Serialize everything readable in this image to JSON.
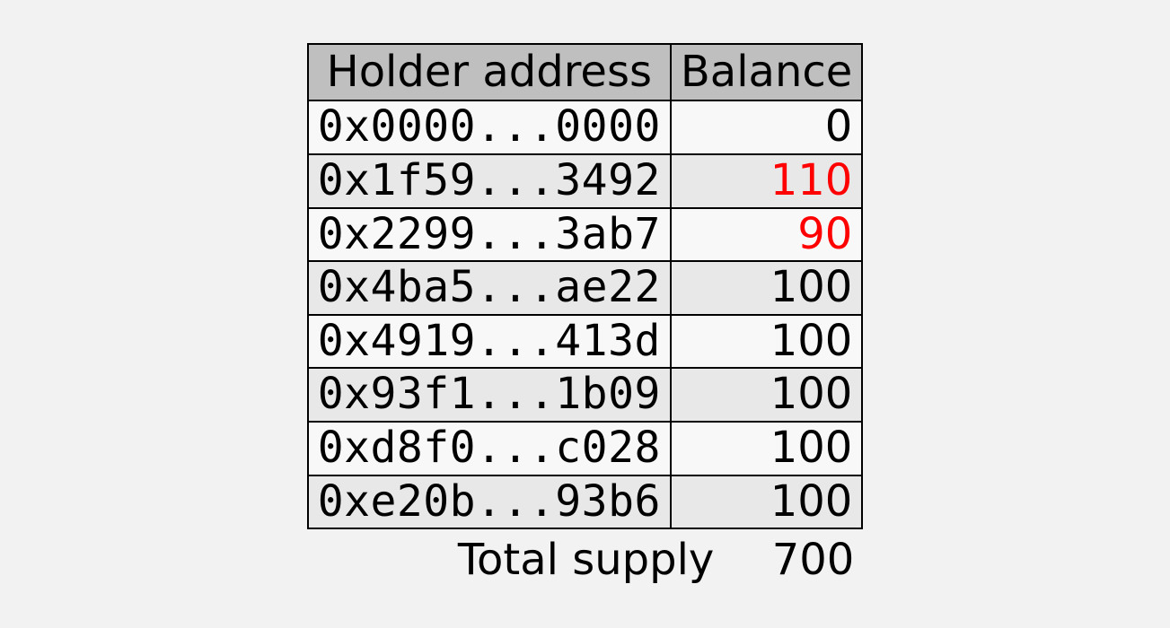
{
  "table": {
    "columns": [
      "Holder address",
      "Balance"
    ],
    "header_bg": "#bfbfbf",
    "border_color": "#000000",
    "stripe_bg": "#e8e8e8",
    "nostripe_bg": "#f8f8f8",
    "page_bg": "#f2f2f2",
    "highlight_color": "#ff0000",
    "address_font": "monospace",
    "fontsize": 48,
    "rows": [
      {
        "address": "0x0000...0000",
        "balance": "0",
        "highlighted": false,
        "striped": false
      },
      {
        "address": "0x1f59...3492",
        "balance": "110",
        "highlighted": true,
        "striped": true
      },
      {
        "address": "0x2299...3ab7",
        "balance": "90",
        "highlighted": true,
        "striped": false
      },
      {
        "address": "0x4ba5...ae22",
        "balance": "100",
        "highlighted": false,
        "striped": true
      },
      {
        "address": "0x4919...413d",
        "balance": "100",
        "highlighted": false,
        "striped": false
      },
      {
        "address": "0x93f1...1b09",
        "balance": "100",
        "highlighted": false,
        "striped": true
      },
      {
        "address": "0xd8f0...c028",
        "balance": "100",
        "highlighted": false,
        "striped": false
      },
      {
        "address": "0xe20b...93b6",
        "balance": "100",
        "highlighted": false,
        "striped": true
      }
    ]
  },
  "total": {
    "label": "Total supply",
    "value": "700"
  }
}
